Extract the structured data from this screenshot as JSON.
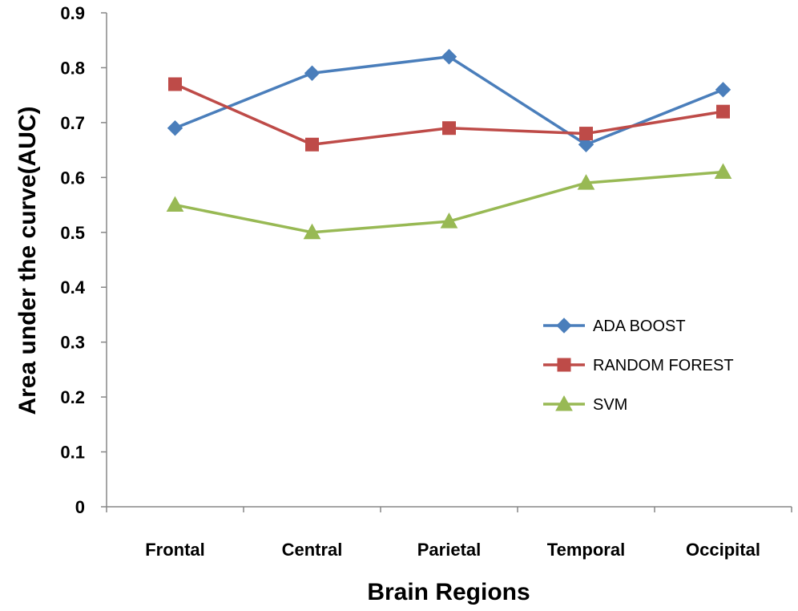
{
  "chart_data": {
    "type": "line",
    "title": "",
    "xlabel": "Brain Regions",
    "ylabel": "Area under the curve(AUC)",
    "categories": [
      "Frontal",
      "Central",
      "Parietal",
      "Temporal",
      "Occipital"
    ],
    "ylim": [
      0,
      0.9
    ],
    "yticks": [
      "0",
      "0.1",
      "0.2",
      "0.3",
      "0.4",
      "0.5",
      "0.6",
      "0.7",
      "0.8",
      "0.9"
    ],
    "grid": false,
    "legend_position": "right",
    "series": [
      {
        "name": "ADA BOOST",
        "values": [
          0.69,
          0.79,
          0.82,
          0.66,
          0.76
        ],
        "color": "#4a7ebb",
        "marker": "diamond"
      },
      {
        "name": "RANDOM FOREST",
        "values": [
          0.77,
          0.66,
          0.69,
          0.68,
          0.72
        ],
        "color": "#be4b48",
        "marker": "square"
      },
      {
        "name": "SVM",
        "values": [
          0.55,
          0.5,
          0.52,
          0.59,
          0.61
        ],
        "color": "#98b954",
        "marker": "triangle"
      }
    ]
  }
}
